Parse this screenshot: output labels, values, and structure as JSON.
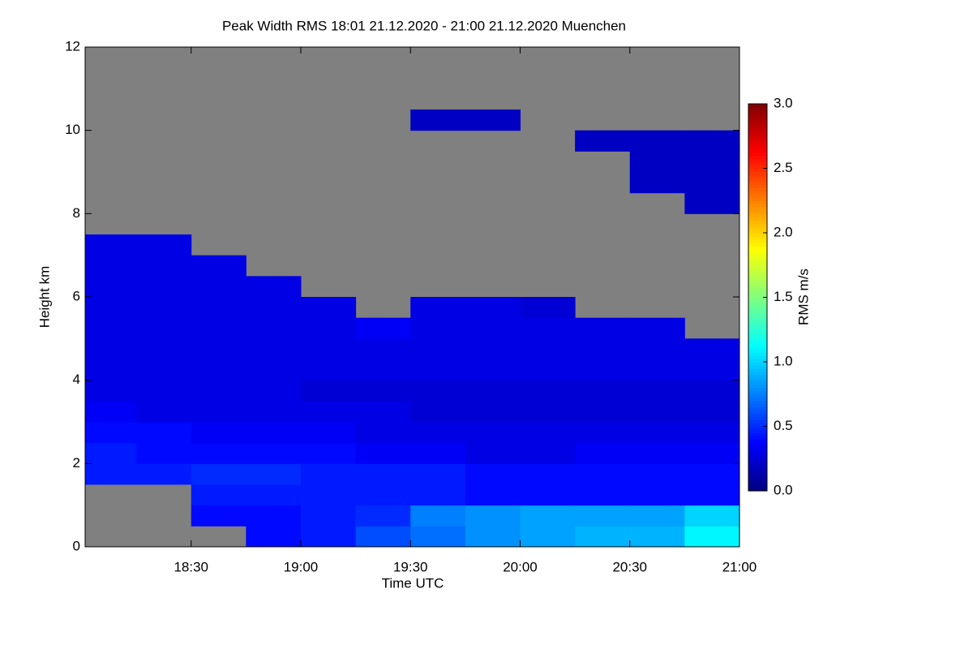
{
  "chart_data": {
    "type": "heatmap",
    "title": "Peak Width RMS   18:01 21.12.2020 - 21:00 21.12.2020 Muenchen",
    "x_label": "Time UTC",
    "y_label": "Height km",
    "colorbar_label": "RMS m/s",
    "xlim": [
      1081,
      1260
    ],
    "xticks": [
      {
        "value": 1110,
        "label": "18:30"
      },
      {
        "value": 1140,
        "label": "19:00"
      },
      {
        "value": 1170,
        "label": "19:30"
      },
      {
        "value": 1200,
        "label": "20:00"
      },
      {
        "value": 1230,
        "label": "20:30"
      },
      {
        "value": 1260,
        "label": "21:00"
      }
    ],
    "ylim": [
      0,
      12
    ],
    "yticks": [
      0,
      2,
      4,
      6,
      8,
      10,
      12
    ],
    "zlim": [
      0,
      3
    ],
    "zticks": [
      {
        "value": 0,
        "label": "0.0"
      },
      0.5,
      {
        "value": 1,
        "label": "1.0"
      },
      1.5,
      {
        "value": 2,
        "label": "2.0"
      },
      2.5,
      {
        "value": 3,
        "label": "3.0"
      }
    ],
    "colormap": "jet",
    "missing_color": "#808080",
    "x_bins": [
      1081,
      1095,
      1110,
      1125,
      1140,
      1155,
      1170,
      1185,
      1200,
      1215,
      1230,
      1245,
      1260
    ],
    "y_bins": [
      0,
      0.5,
      1,
      1.5,
      2,
      2.5,
      3,
      3.5,
      4,
      4.5,
      5,
      5.5,
      6,
      6.5,
      7,
      7.5,
      8,
      8.5,
      9,
      9.5,
      10,
      10.5,
      11,
      11.5,
      12
    ],
    "z": [
      [
        null,
        null,
        null,
        0.4,
        0.45,
        0.6,
        0.7,
        0.8,
        0.85,
        0.9,
        0.9,
        1.1
      ],
      [
        null,
        null,
        0.4,
        0.4,
        0.45,
        0.5,
        0.75,
        0.8,
        0.85,
        0.85,
        0.85,
        1.0
      ],
      [
        null,
        null,
        0.45,
        0.45,
        0.45,
        0.45,
        0.45,
        0.4,
        0.4,
        0.4,
        0.4,
        0.4
      ],
      [
        0.45,
        0.45,
        0.5,
        0.5,
        0.45,
        0.45,
        0.45,
        0.4,
        0.4,
        0.4,
        0.4,
        0.4
      ],
      [
        0.45,
        0.4,
        0.4,
        0.4,
        0.4,
        0.35,
        0.35,
        0.3,
        0.3,
        0.35,
        0.35,
        0.35
      ],
      [
        0.4,
        0.4,
        0.35,
        0.35,
        0.35,
        0.3,
        0.3,
        0.3,
        0.3,
        0.3,
        0.3,
        0.3
      ],
      [
        0.35,
        0.3,
        0.3,
        0.3,
        0.3,
        0.3,
        0.25,
        0.25,
        0.25,
        0.25,
        0.25,
        0.25
      ],
      [
        0.3,
        0.3,
        0.3,
        0.3,
        0.25,
        0.25,
        0.25,
        0.25,
        0.25,
        0.25,
        0.25,
        0.25
      ],
      [
        0.3,
        0.3,
        0.3,
        0.3,
        0.3,
        0.3,
        0.3,
        0.3,
        0.3,
        0.3,
        0.3,
        0.3
      ],
      [
        0.3,
        0.3,
        0.3,
        0.3,
        0.3,
        0.3,
        0.3,
        0.3,
        0.3,
        0.3,
        0.3,
        0.3
      ],
      [
        0.3,
        0.3,
        0.3,
        0.3,
        0.3,
        0.35,
        0.3,
        0.3,
        0.3,
        0.3,
        0.3,
        null
      ],
      [
        0.3,
        0.3,
        0.3,
        0.3,
        0.3,
        null,
        0.3,
        0.3,
        0.25,
        null,
        null,
        null
      ],
      [
        0.3,
        0.3,
        0.3,
        0.3,
        null,
        null,
        null,
        null,
        null,
        null,
        null,
        null
      ],
      [
        0.3,
        0.3,
        0.3,
        null,
        null,
        null,
        null,
        null,
        null,
        null,
        null,
        null
      ],
      [
        0.3,
        0.3,
        null,
        null,
        null,
        null,
        null,
        null,
        null,
        null,
        null,
        null
      ],
      [
        null,
        null,
        null,
        null,
        null,
        null,
        null,
        null,
        null,
        null,
        null,
        null
      ],
      [
        null,
        null,
        null,
        null,
        null,
        null,
        null,
        null,
        null,
        null,
        null,
        0.2
      ],
      [
        null,
        null,
        null,
        null,
        null,
        null,
        null,
        null,
        null,
        null,
        0.2,
        0.2
      ],
      [
        null,
        null,
        null,
        null,
        null,
        null,
        null,
        null,
        null,
        null,
        0.2,
        0.2
      ],
      [
        null,
        null,
        null,
        null,
        null,
        null,
        null,
        null,
        null,
        0.2,
        0.2,
        0.2
      ],
      [
        null,
        null,
        null,
        null,
        null,
        null,
        0.2,
        0.2,
        null,
        null,
        null,
        null
      ],
      [
        null,
        null,
        null,
        null,
        null,
        null,
        null,
        null,
        null,
        null,
        null,
        null
      ],
      [
        null,
        null,
        null,
        null,
        null,
        null,
        null,
        null,
        null,
        null,
        null,
        null
      ],
      [
        null,
        null,
        null,
        null,
        null,
        null,
        null,
        null,
        null,
        null,
        null,
        null
      ]
    ]
  }
}
